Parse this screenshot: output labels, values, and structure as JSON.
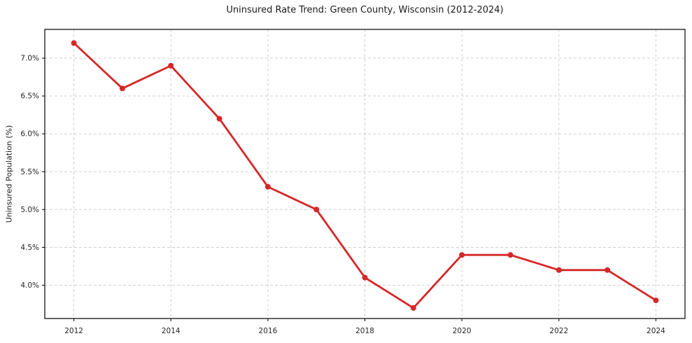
{
  "chart_data": {
    "type": "line",
    "title": "Uninsured Rate Trend: Green County, Wisconsin (2012-2024)",
    "xlabel": "",
    "ylabel": "Uninsured Population (%)",
    "x": [
      2012,
      2013,
      2014,
      2015,
      2016,
      2017,
      2018,
      2019,
      2020,
      2021,
      2022,
      2023,
      2024
    ],
    "values": [
      7.2,
      6.6,
      6.9,
      6.2,
      5.3,
      5.0,
      4.1,
      3.7,
      4.4,
      4.4,
      4.2,
      4.2,
      3.8
    ],
    "xlim": [
      2011.4,
      2024.6
    ],
    "ylim": [
      3.56,
      7.38
    ],
    "xticks": {
      "values": [
        2012,
        2014,
        2016,
        2018,
        2020,
        2022,
        2024
      ],
      "labels": [
        "2012",
        "2014",
        "2016",
        "2018",
        "2020",
        "2022",
        "2024"
      ]
    },
    "yticks": {
      "values": [
        4.0,
        4.5,
        5.0,
        5.5,
        6.0,
        6.5,
        7.0
      ],
      "labels": [
        "4.0%",
        "4.5%",
        "5.0%",
        "5.5%",
        "6.0%",
        "6.5%",
        "7.0%"
      ]
    },
    "grid": {
      "show": true,
      "style": "dashed"
    },
    "legend": {
      "show": false
    },
    "marker": "circle",
    "colors": {
      "line": "#d62728",
      "marker": "#d62728",
      "grid": "#cacaca",
      "spine": "#000000",
      "tick_text": "#262626",
      "title_text": "#1a1a1a",
      "background": "#ffffff"
    }
  }
}
